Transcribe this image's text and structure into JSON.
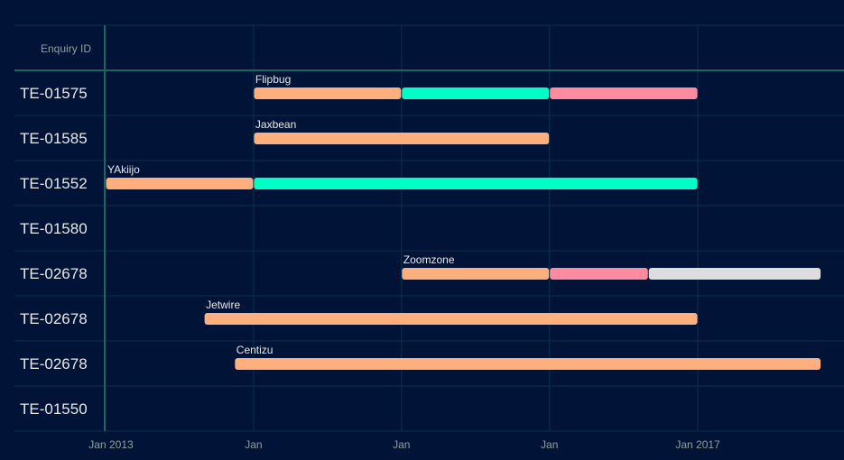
{
  "chart_data": {
    "type": "gantt",
    "header_label": "Enquiry ID",
    "x_ticks": [
      "Jan 2013",
      "Jan",
      "Jan",
      "Jan",
      "Jan 2017"
    ],
    "x_tick_dates": [
      "2013-01-01",
      "2014-01-01",
      "2015-01-01",
      "2016-01-01",
      "2017-01-01"
    ],
    "x_range": [
      "2013-01-01",
      "2017-11-01"
    ],
    "rows": [
      {
        "id": "TE-01575",
        "label": "Flipbug",
        "segments": [
          {
            "start": "2014-01-01",
            "end": "2015-01-01",
            "color": "#FFAE7D"
          },
          {
            "start": "2015-01-01",
            "end": "2016-01-01",
            "color": "#00FFC4"
          },
          {
            "start": "2016-01-01",
            "end": "2017-01-01",
            "color": "#FF8B9E"
          }
        ]
      },
      {
        "id": "TE-01585",
        "label": "Jaxbean",
        "segments": [
          {
            "start": "2014-01-01",
            "end": "2016-01-01",
            "color": "#FFAE7D"
          }
        ]
      },
      {
        "id": "TE-01552",
        "label": "YAkiijo",
        "segments": [
          {
            "start": "2013-01-01",
            "end": "2014-01-01",
            "color": "#FFAE7D"
          },
          {
            "start": "2014-01-01",
            "end": "2017-01-01",
            "color": "#00FFC4"
          }
        ]
      },
      {
        "id": "TE-01580",
        "label": "",
        "segments": []
      },
      {
        "id": "TE-02678",
        "label": "Zoomzone",
        "segments": [
          {
            "start": "2015-01-01",
            "end": "2016-01-01",
            "color": "#FFAE7D"
          },
          {
            "start": "2016-01-01",
            "end": "2016-09-01",
            "color": "#FF8B9E"
          },
          {
            "start": "2016-09-01",
            "end": "2017-11-01",
            "color": "#DDDDDD"
          }
        ]
      },
      {
        "id": "TE-02678",
        "label": "Jetwire",
        "segments": [
          {
            "start": "2013-09-01",
            "end": "2017-01-01",
            "color": "#FFAE7D"
          }
        ]
      },
      {
        "id": "TE-02678",
        "label": "Centizu",
        "segments": [
          {
            "start": "2013-11-15",
            "end": "2017-11-01",
            "color": "#FFAE7D"
          }
        ]
      },
      {
        "id": "TE-01550",
        "label": "",
        "segments": []
      }
    ],
    "colors": {
      "background": "#011438",
      "grid": "#0c3149",
      "axis": "#1e6462",
      "tick_text": "#8aa39a",
      "row_text": "#e8e8e8"
    }
  }
}
